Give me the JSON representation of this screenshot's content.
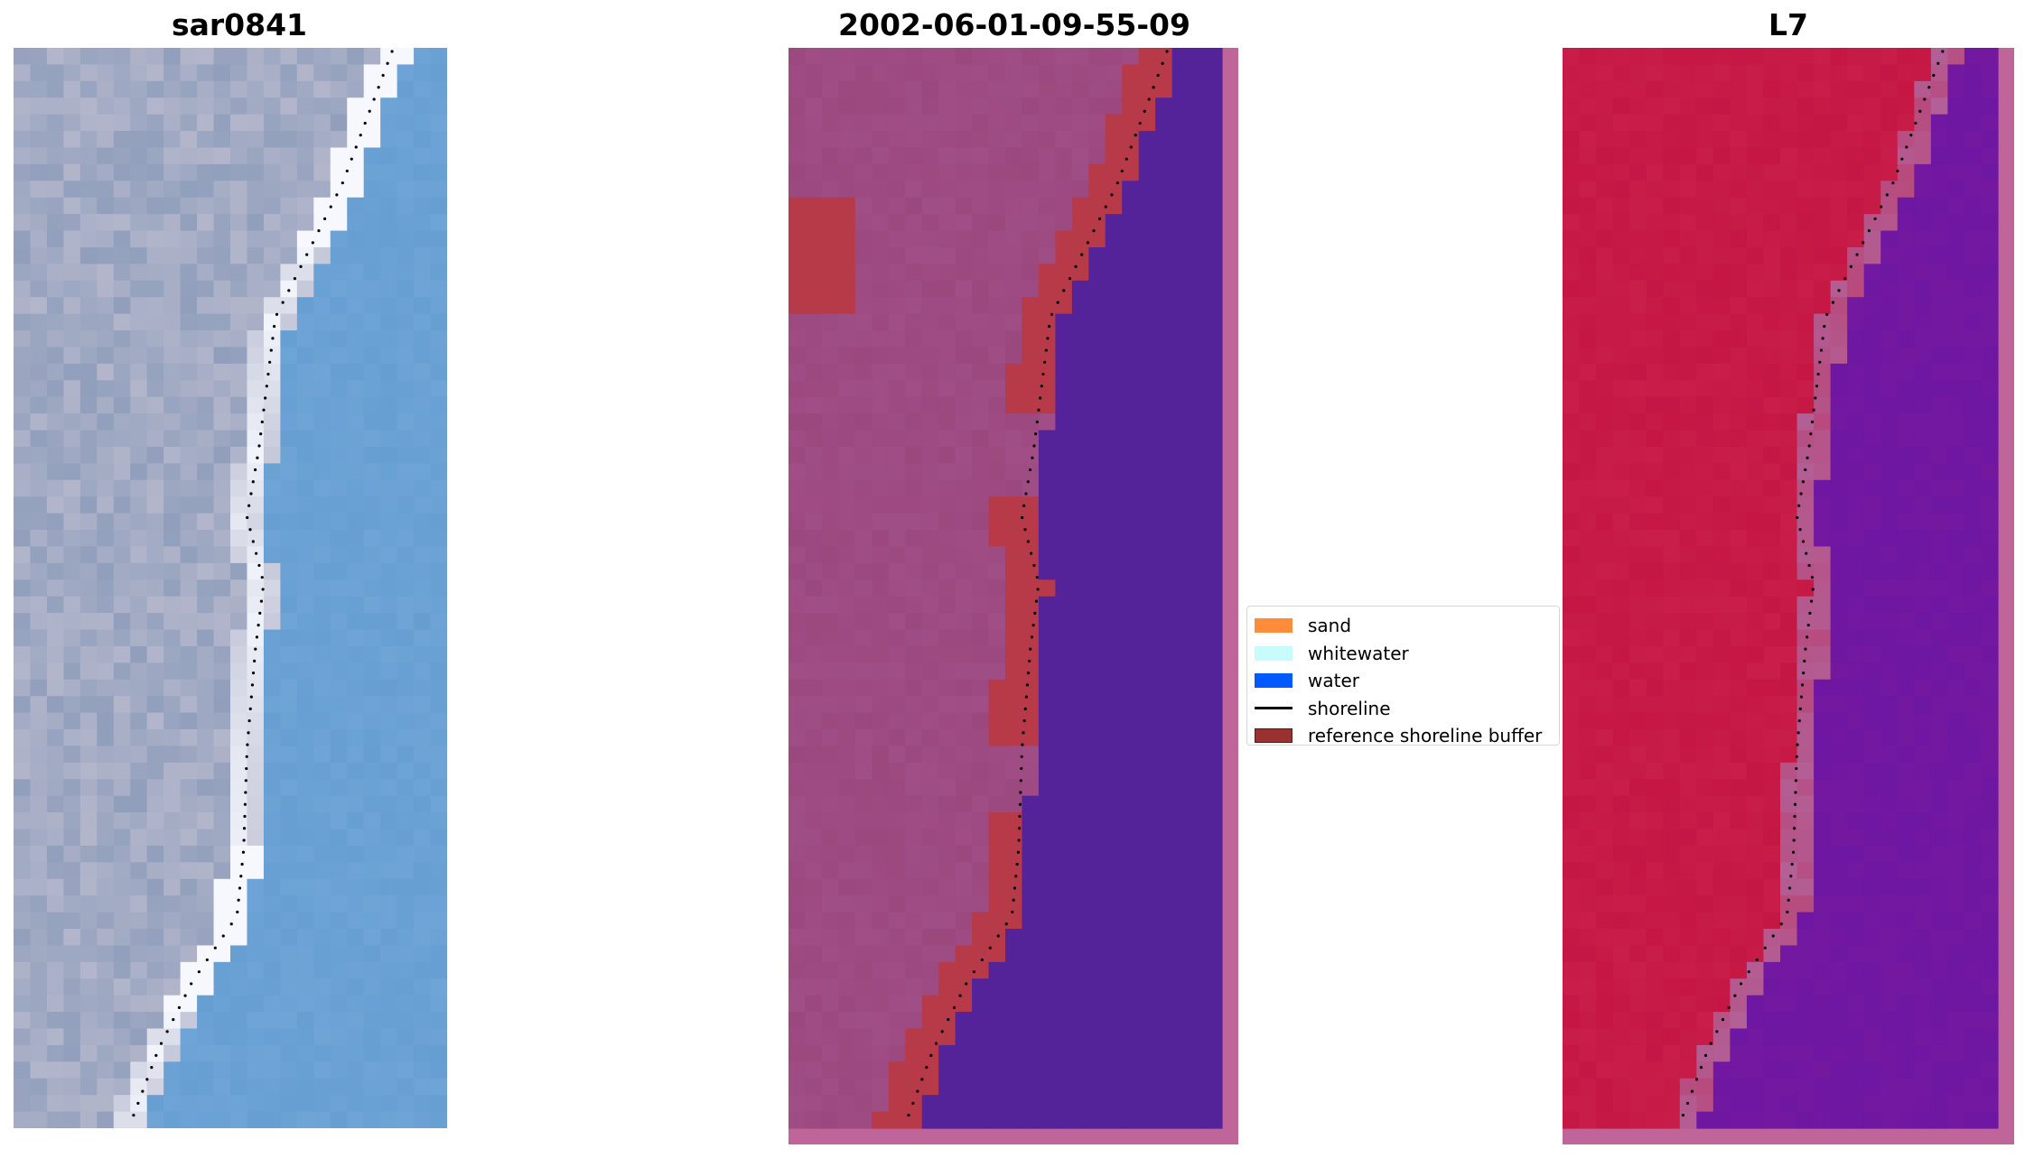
{
  "panels": [
    {
      "title": "sar0841",
      "kind": "rgb"
    },
    {
      "title": "2002-06-01-09-55-09",
      "kind": "classified"
    },
    {
      "title": "L7",
      "kind": "index"
    }
  ],
  "legend": {
    "items": [
      {
        "label": "sand",
        "type": "patch",
        "color": "#ff8c3a"
      },
      {
        "label": "whitewater",
        "type": "patch",
        "color": "#c8fcfc"
      },
      {
        "label": "water",
        "type": "patch",
        "color": "#005afe"
      },
      {
        "label": "shoreline",
        "type": "line",
        "color": "#000000"
      },
      {
        "label": "reference shoreline buffer",
        "type": "patch",
        "color": "#9b3030"
      }
    ]
  },
  "colors": {
    "rgb_land": "#b3b6cb",
    "rgb_sea": "#6ea4d6",
    "rgb_surf": "#f2f4fb",
    "class_land": "#a04e86",
    "class_buffer": "#b73a48",
    "class_water": "#54239a",
    "class_frame": "#c06599",
    "index_land": "#c51644",
    "index_water": "#7418a0",
    "index_frame": "#c06599",
    "shoreline_dots": "#000000"
  }
}
